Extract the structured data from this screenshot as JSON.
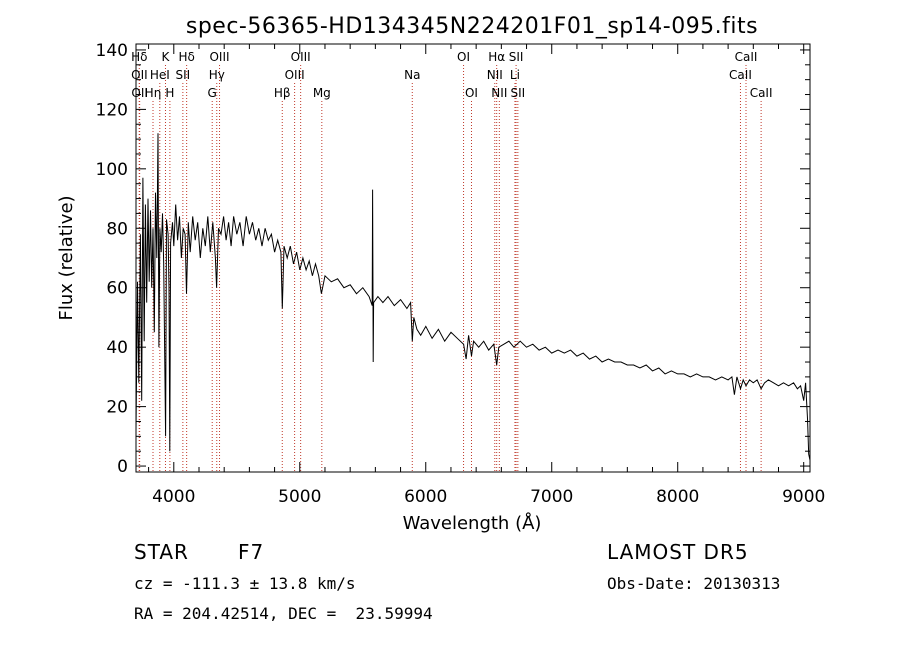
{
  "chart_data": {
    "type": "line",
    "title": "spec-56365-HD134345N224201F01_sp14-095.fits",
    "xlabel": "Wavelength (Å)",
    "ylabel": "Flux (relative)",
    "xlim": [
      3700,
      9050
    ],
    "ylim": [
      -2,
      142
    ],
    "xticks": [
      4000,
      5000,
      6000,
      7000,
      8000,
      9000
    ],
    "xtick_labels": [
      "4000",
      "5000",
      "6000",
      "7000",
      "8000",
      "9000"
    ],
    "yticks": [
      0,
      20,
      40,
      60,
      80,
      100,
      120,
      140
    ],
    "ytick_labels": [
      "0",
      "20",
      "40",
      "60",
      "80",
      "100",
      "120",
      "140"
    ],
    "grid": false,
    "line_color": "#000000",
    "marker_color": "#c0392b",
    "series": [
      {
        "values": [
          [
            3700,
            12
          ],
          [
            3712,
            62
          ],
          [
            3722,
            28
          ],
          [
            3735,
            78
          ],
          [
            3745,
            22
          ],
          [
            3755,
            97
          ],
          [
            3765,
            42
          ],
          [
            3775,
            88
          ],
          [
            3785,
            55
          ],
          [
            3795,
            90
          ],
          [
            3805,
            62
          ],
          [
            3815,
            86
          ],
          [
            3825,
            60
          ],
          [
            3835,
            80
          ],
          [
            3845,
            45
          ],
          [
            3855,
            92
          ],
          [
            3865,
            70
          ],
          [
            3875,
            112
          ],
          [
            3882,
            40
          ],
          [
            3890,
            80
          ],
          [
            3900,
            72
          ],
          [
            3910,
            85
          ],
          [
            3920,
            68
          ],
          [
            3935,
            10
          ],
          [
            3942,
            83
          ],
          [
            3955,
            78
          ],
          [
            3962,
            60
          ],
          [
            3968,
            5
          ],
          [
            3975,
            75
          ],
          [
            3990,
            82
          ],
          [
            4000,
            74
          ],
          [
            4015,
            88
          ],
          [
            4030,
            76
          ],
          [
            4045,
            84
          ],
          [
            4060,
            70
          ],
          [
            4075,
            80
          ],
          [
            4090,
            78
          ],
          [
            4101,
            58
          ],
          [
            4115,
            82
          ],
          [
            4130,
            72
          ],
          [
            4150,
            84
          ],
          [
            4170,
            76
          ],
          [
            4190,
            82
          ],
          [
            4210,
            70
          ],
          [
            4230,
            80
          ],
          [
            4250,
            74
          ],
          [
            4270,
            84
          ],
          [
            4290,
            72
          ],
          [
            4310,
            82
          ],
          [
            4330,
            70
          ],
          [
            4340,
            60
          ],
          [
            4355,
            80
          ],
          [
            4375,
            78
          ],
          [
            4395,
            84
          ],
          [
            4415,
            76
          ],
          [
            4435,
            82
          ],
          [
            4455,
            74
          ],
          [
            4475,
            84
          ],
          [
            4500,
            78
          ],
          [
            4525,
            82
          ],
          [
            4550,
            74
          ],
          [
            4575,
            84
          ],
          [
            4600,
            78
          ],
          [
            4625,
            82
          ],
          [
            4650,
            76
          ],
          [
            4675,
            80
          ],
          [
            4700,
            74
          ],
          [
            4725,
            80
          ],
          [
            4750,
            76
          ],
          [
            4775,
            78
          ],
          [
            4800,
            72
          ],
          [
            4825,
            76
          ],
          [
            4850,
            72
          ],
          [
            4861,
            53
          ],
          [
            4875,
            74
          ],
          [
            4900,
            70
          ],
          [
            4925,
            74
          ],
          [
            4950,
            68
          ],
          [
            4975,
            72
          ],
          [
            5000,
            66
          ],
          [
            5025,
            70
          ],
          [
            5050,
            66
          ],
          [
            5075,
            69
          ],
          [
            5100,
            64
          ],
          [
            5125,
            68
          ],
          [
            5150,
            64
          ],
          [
            5172,
            58
          ],
          [
            5200,
            64
          ],
          [
            5250,
            62
          ],
          [
            5300,
            63
          ],
          [
            5350,
            60
          ],
          [
            5400,
            61
          ],
          [
            5450,
            58
          ],
          [
            5500,
            60
          ],
          [
            5550,
            57
          ],
          [
            5575,
            54
          ],
          [
            5578,
            93
          ],
          [
            5581,
            56
          ],
          [
            5583,
            35
          ],
          [
            5586,
            55
          ],
          [
            5620,
            57
          ],
          [
            5660,
            55
          ],
          [
            5700,
            57
          ],
          [
            5750,
            54
          ],
          [
            5800,
            56
          ],
          [
            5850,
            53
          ],
          [
            5880,
            55
          ],
          [
            5893,
            42
          ],
          [
            5905,
            50
          ],
          [
            5930,
            46
          ],
          [
            5960,
            44
          ],
          [
            6000,
            47
          ],
          [
            6050,
            43
          ],
          [
            6100,
            46
          ],
          [
            6150,
            42
          ],
          [
            6200,
            45
          ],
          [
            6250,
            43
          ],
          [
            6300,
            41
          ],
          [
            6320,
            36
          ],
          [
            6340,
            44
          ],
          [
            6363,
            37
          ],
          [
            6380,
            42
          ],
          [
            6420,
            40
          ],
          [
            6460,
            42
          ],
          [
            6500,
            39
          ],
          [
            6540,
            41
          ],
          [
            6563,
            34
          ],
          [
            6580,
            40
          ],
          [
            6620,
            41
          ],
          [
            6660,
            42
          ],
          [
            6700,
            40
          ],
          [
            6750,
            42
          ],
          [
            6800,
            40
          ],
          [
            6850,
            41
          ],
          [
            6900,
            39
          ],
          [
            6950,
            40
          ],
          [
            7000,
            38
          ],
          [
            7050,
            39
          ],
          [
            7100,
            38
          ],
          [
            7150,
            39
          ],
          [
            7200,
            37
          ],
          [
            7250,
            38
          ],
          [
            7300,
            36
          ],
          [
            7350,
            37
          ],
          [
            7400,
            35
          ],
          [
            7450,
            36
          ],
          [
            7500,
            35
          ],
          [
            7550,
            35
          ],
          [
            7600,
            34
          ],
          [
            7650,
            34
          ],
          [
            7700,
            33
          ],
          [
            7750,
            34
          ],
          [
            7800,
            32
          ],
          [
            7850,
            33
          ],
          [
            7900,
            31
          ],
          [
            7950,
            32
          ],
          [
            8000,
            31
          ],
          [
            8050,
            31
          ],
          [
            8100,
            30
          ],
          [
            8150,
            31
          ],
          [
            8200,
            30
          ],
          [
            8250,
            30
          ],
          [
            8300,
            29
          ],
          [
            8350,
            30
          ],
          [
            8400,
            29
          ],
          [
            8430,
            30
          ],
          [
            8450,
            24
          ],
          [
            8470,
            30
          ],
          [
            8498,
            26
          ],
          [
            8520,
            29
          ],
          [
            8542,
            27
          ],
          [
            8570,
            29
          ],
          [
            8600,
            28
          ],
          [
            8630,
            29
          ],
          [
            8662,
            26
          ],
          [
            8690,
            28
          ],
          [
            8720,
            29
          ],
          [
            8760,
            28
          ],
          [
            8800,
            27
          ],
          [
            8840,
            28
          ],
          [
            8880,
            27
          ],
          [
            8920,
            28
          ],
          [
            8950,
            26
          ],
          [
            8975,
            27
          ],
          [
            9000,
            22
          ],
          [
            9015,
            28
          ],
          [
            9030,
            16
          ],
          [
            9040,
            4
          ],
          [
            9050,
            2
          ]
        ]
      }
    ],
    "lines": [
      {
        "label": "Hδ",
        "wave": 3726,
        "row": 0
      },
      {
        "label": "OII",
        "wave": 3727,
        "row": 1
      },
      {
        "label": "OII",
        "wave": 3729,
        "row": 2
      },
      {
        "label": "Hη",
        "wave": 3835,
        "row": 2
      },
      {
        "label": "K",
        "wave": 3934,
        "row": 0
      },
      {
        "label": "HeI",
        "wave": 3889,
        "row": 1
      },
      {
        "label": "H",
        "wave": 3969,
        "row": 2
      },
      {
        "label": "Hδ",
        "wave": 4102,
        "row": 0
      },
      {
        "label": "SII",
        "wave": 4072,
        "row": 1
      },
      {
        "label": "OIII",
        "wave": 4363,
        "row": 0
      },
      {
        "label": "Hγ",
        "wave": 4341,
        "row": 1
      },
      {
        "label": "G",
        "wave": 4305,
        "row": 2
      },
      {
        "label": "Hβ",
        "wave": 4861,
        "row": 2
      },
      {
        "label": "OIII",
        "wave": 5007,
        "row": 0
      },
      {
        "label": "OIII",
        "wave": 4959,
        "row": 1
      },
      {
        "label": "Mg",
        "wave": 5175,
        "row": 2
      },
      {
        "label": "Na",
        "wave": 5893,
        "row": 1
      },
      {
        "label": "OI",
        "wave": 6300,
        "row": 0
      },
      {
        "label": "OI",
        "wave": 6363,
        "row": 2
      },
      {
        "label": "Hα",
        "wave": 6563,
        "row": 0
      },
      {
        "label": "NII",
        "wave": 6548,
        "row": 1
      },
      {
        "label": "NII",
        "wave": 6584,
        "row": 2
      },
      {
        "label": "SII",
        "wave": 6717,
        "row": 0
      },
      {
        "label": "Li",
        "wave": 6708,
        "row": 1
      },
      {
        "label": "SII",
        "wave": 6731,
        "row": 2
      },
      {
        "label": "CaII",
        "wave": 8542,
        "row": 0
      },
      {
        "label": "CaII",
        "wave": 8498,
        "row": 1
      },
      {
        "label": "CaII",
        "wave": 8662,
        "row": 2
      }
    ]
  },
  "info": {
    "object_class": "STAR",
    "subclass": "F7",
    "survey": "LAMOST DR5",
    "redshift": "cz = -111.3 ± 13.8 km/s",
    "obs_date": "Obs-Date: 20130313",
    "coords": "RA = 204.42514, DEC =  23.59994"
  }
}
